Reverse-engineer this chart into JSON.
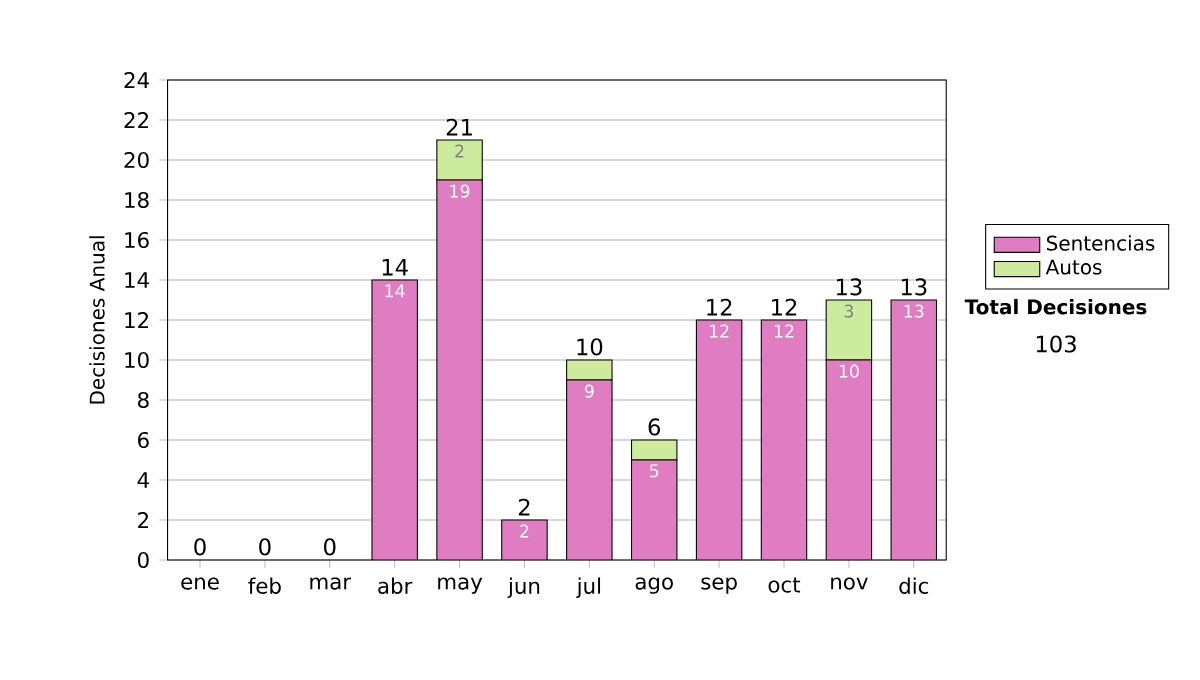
{
  "chart_data": {
    "type": "bar",
    "stacked": true,
    "ylabel": "Decisiones Anual",
    "categories": [
      "ene",
      "feb",
      "mar",
      "abr",
      "may",
      "jun",
      "jul",
      "ago",
      "sep",
      "oct",
      "nov",
      "dic"
    ],
    "series": [
      {
        "name": "Sentencias",
        "color": "#e07cc2",
        "values": [
          0,
          0,
          0,
          14,
          19,
          2,
          9,
          5,
          12,
          12,
          10,
          13
        ],
        "value_labels": [
          null,
          null,
          null,
          "14",
          "19",
          "2",
          "9",
          "5",
          "12",
          "12",
          "10",
          "13"
        ]
      },
      {
        "name": "Autos",
        "color": "#cdeb9c",
        "values": [
          0,
          0,
          0,
          0,
          2,
          0,
          1,
          1,
          0,
          0,
          3,
          0
        ],
        "value_labels": [
          null,
          null,
          null,
          null,
          "2",
          null,
          null,
          null,
          null,
          null,
          "3",
          null
        ]
      }
    ],
    "totals": [
      "0",
      "0",
      "0",
      "14",
      "21",
      "2",
      "10",
      "6",
      "12",
      "12",
      "13",
      "13"
    ],
    "ylim": [
      0,
      24
    ],
    "yticks": [
      0,
      2,
      4,
      6,
      8,
      10,
      12,
      14,
      16,
      18,
      20,
      22,
      24
    ],
    "grid": "y",
    "legend": "right",
    "annotations": [
      "Total Decisiones",
      "103"
    ]
  }
}
